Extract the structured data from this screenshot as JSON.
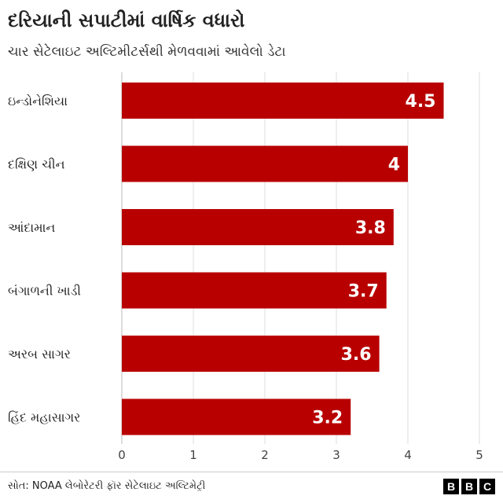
{
  "header": {
    "title": "દરિયાની સપાટીમાં વાર્ષિક વધારો",
    "subtitle": "ચાર સેટેલાઇટ અલ્ટિમીટર્સથી મેળવવામાં આવેલો ડેટા"
  },
  "chart_data": {
    "type": "bar",
    "orientation": "horizontal",
    "categories": [
      "ઇન્ડોનેશિયા",
      "દક્ષિણ ચીન",
      "આંદામાન",
      "બંગાળની ખાડી",
      "અરબ સાગર",
      "હિંદ મહાસાગર"
    ],
    "values": [
      4.5,
      4,
      3.8,
      3.7,
      3.6,
      3.2
    ],
    "value_labels": [
      "4.5",
      "4",
      "3.8",
      "3.7",
      "3.6",
      "3.2"
    ],
    "xlim": [
      0,
      5
    ],
    "xticks": [
      0,
      1,
      2,
      3,
      4,
      5
    ],
    "grid": "vertical",
    "bar_color": "#b80000",
    "title": "દરિયાની સપાટીમાં વાર્ષિક વધારો",
    "xlabel": "",
    "ylabel": ""
  },
  "footer": {
    "source": "સોત: NOAA લેબોરેટરી ફૉર સેટેલાઇટ અલ્ટિમેટ્રી",
    "logo_letters": [
      "B",
      "B",
      "C"
    ]
  }
}
